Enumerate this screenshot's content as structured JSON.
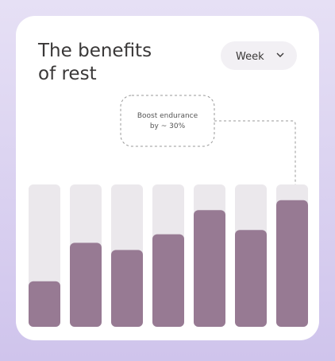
{
  "chart_data": {
    "type": "bar",
    "title": [
      "The benefits",
      "of rest"
    ],
    "dropdown": "Week",
    "annotation": [
      "Boost endurance",
      "by ~ 30%"
    ],
    "values": [
      32,
      59,
      54,
      65,
      82,
      68,
      89
    ],
    "color": "#977a93",
    "track_color": "#ebe8ec",
    "ylim": [
      0,
      100
    ]
  }
}
